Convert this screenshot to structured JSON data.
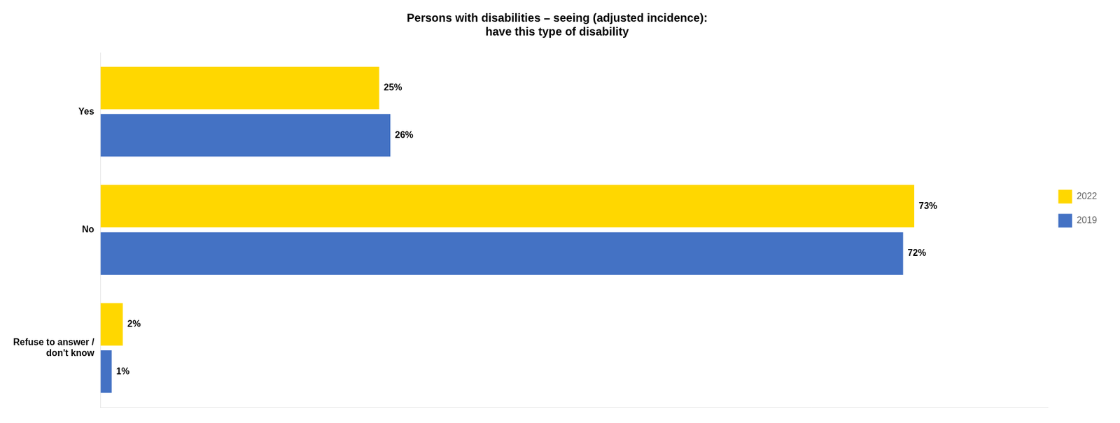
{
  "chart_data": {
    "type": "bar",
    "orientation": "horizontal",
    "title": "Persons with disabilities – seeing (adjusted incidence):\nhave this type of disability",
    "categories": [
      "Yes",
      "No",
      "Refuse to answer /\ndon't know"
    ],
    "series": [
      {
        "name": "2022",
        "color": "#FFD700",
        "values": [
          25,
          73,
          2
        ],
        "value_labels": [
          "25%",
          "73%",
          "2%"
        ]
      },
      {
        "name": "2019",
        "color": "#4472C4",
        "values": [
          26,
          72,
          1
        ],
        "value_labels": [
          "26%",
          "72%",
          "1%"
        ]
      }
    ],
    "xlim": [
      0,
      85
    ],
    "grid": false,
    "legend": "right",
    "data_labels": true,
    "tick_labels": "y"
  }
}
